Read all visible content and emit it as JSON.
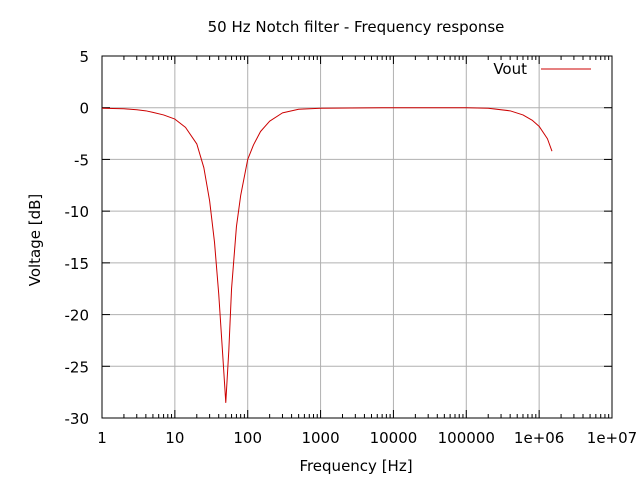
{
  "chart_data": {
    "type": "line",
    "title": "50 Hz Notch filter - Frequency response",
    "xlabel": "Frequency [Hz]",
    "ylabel": "Voltage [dB]",
    "x_scale": "log",
    "xlim": [
      1,
      10000000
    ],
    "ylim": [
      -30,
      5
    ],
    "grid": true,
    "legend_position": "top-right",
    "x_ticks": [
      {
        "value": 1,
        "label": "1"
      },
      {
        "value": 10,
        "label": "10"
      },
      {
        "value": 100,
        "label": "100"
      },
      {
        "value": 1000,
        "label": "1000"
      },
      {
        "value": 10000,
        "label": "10000"
      },
      {
        "value": 100000,
        "label": "100000"
      },
      {
        "value": 1000000,
        "label": "1e+06"
      },
      {
        "value": 10000000,
        "label": "1e+07"
      }
    ],
    "y_ticks": [
      {
        "value": 5,
        "label": "5"
      },
      {
        "value": 0,
        "label": "0"
      },
      {
        "value": -5,
        "label": "-5"
      },
      {
        "value": -10,
        "label": "-10"
      },
      {
        "value": -15,
        "label": "-15"
      },
      {
        "value": -20,
        "label": "-20"
      },
      {
        "value": -25,
        "label": "-25"
      },
      {
        "value": -30,
        "label": "-30"
      }
    ],
    "series": [
      {
        "name": "Vout",
        "color": "#cc0000",
        "points": [
          [
            1,
            -0.05
          ],
          [
            2,
            -0.1
          ],
          [
            3,
            -0.2
          ],
          [
            4,
            -0.3
          ],
          [
            5,
            -0.45
          ],
          [
            7,
            -0.7
          ],
          [
            10,
            -1.1
          ],
          [
            14,
            -1.9
          ],
          [
            20,
            -3.5
          ],
          [
            25,
            -5.8
          ],
          [
            30,
            -9.0
          ],
          [
            35,
            -13.0
          ],
          [
            40,
            -18.0
          ],
          [
            45,
            -23.5
          ],
          [
            50,
            -28.5
          ],
          [
            55,
            -23.5
          ],
          [
            60,
            -17.5
          ],
          [
            70,
            -11.5
          ],
          [
            80,
            -8.5
          ],
          [
            100,
            -5.0
          ],
          [
            120,
            -3.6
          ],
          [
            150,
            -2.3
          ],
          [
            200,
            -1.3
          ],
          [
            300,
            -0.5
          ],
          [
            500,
            -0.15
          ],
          [
            1000,
            -0.05
          ],
          [
            10000,
            0
          ],
          [
            100000,
            0
          ],
          [
            200000,
            -0.05
          ],
          [
            400000,
            -0.3
          ],
          [
            600000,
            -0.7
          ],
          [
            800000,
            -1.2
          ],
          [
            1000000,
            -1.8
          ],
          [
            1300000,
            -3.0
          ],
          [
            1500000,
            -4.2
          ]
        ]
      }
    ]
  }
}
